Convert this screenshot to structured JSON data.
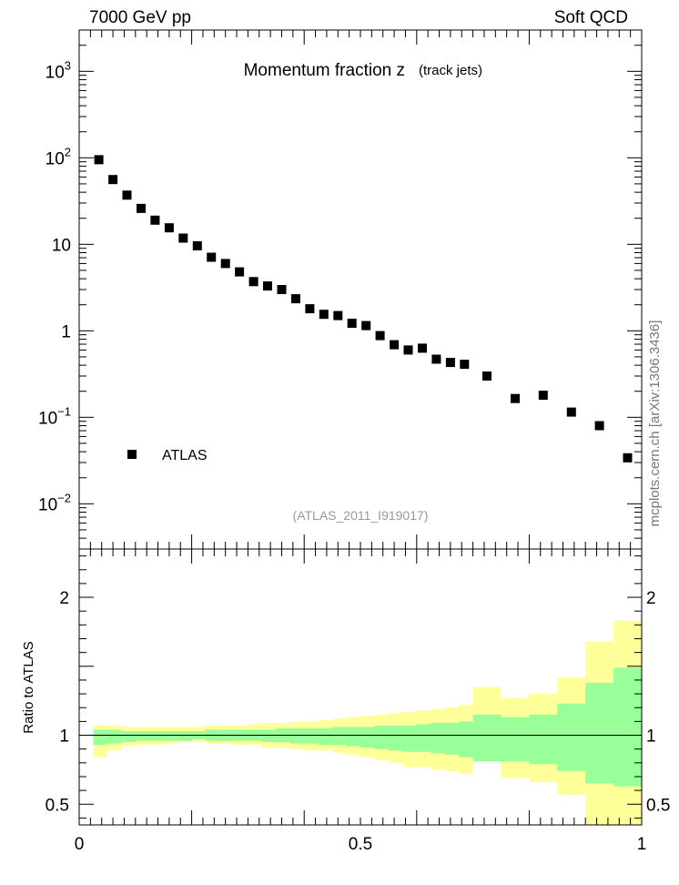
{
  "header": {
    "left": "7000 GeV pp",
    "right": "Soft QCD"
  },
  "side_label": "mcplots.cern.ch [arXiv:1306.3436]",
  "chart_data": [
    {
      "type": "scatter",
      "title": "Momentum fraction z",
      "title_sub": "(track jets)",
      "analysis_tag": "(ATLAS_2011_I919017)",
      "yscale": "log",
      "xlim": [
        0,
        1
      ],
      "ylim": [
        0.003,
        3000
      ],
      "y_ticks": [
        {
          "value": 0.01,
          "base": "10",
          "exp": "−2"
        },
        {
          "value": 0.1,
          "base": "10",
          "exp": "−1"
        },
        {
          "value": 1,
          "base": "1",
          "exp": ""
        },
        {
          "value": 10,
          "base": "10",
          "exp": ""
        },
        {
          "value": 100,
          "base": "10",
          "exp": "2"
        },
        {
          "value": 1000,
          "base": "10",
          "exp": "3"
        }
      ],
      "legend": {
        "entry": "ATLAS",
        "placement": "bottom-left"
      },
      "series": [
        {
          "name": "ATLAS",
          "x": [
            0.035,
            0.06,
            0.085,
            0.11,
            0.135,
            0.16,
            0.185,
            0.21,
            0.235,
            0.26,
            0.285,
            0.31,
            0.335,
            0.36,
            0.385,
            0.41,
            0.435,
            0.46,
            0.485,
            0.51,
            0.535,
            0.56,
            0.585,
            0.61,
            0.635,
            0.66,
            0.685,
            0.725,
            0.775,
            0.825,
            0.875,
            0.925,
            0.975
          ],
          "y": [
            95,
            56,
            37,
            26,
            19,
            15.5,
            11.8,
            9.6,
            7.1,
            6.0,
            4.8,
            3.7,
            3.3,
            3.0,
            2.35,
            1.8,
            1.55,
            1.5,
            1.22,
            1.15,
            0.88,
            0.69,
            0.6,
            0.63,
            0.47,
            0.43,
            0.41,
            0.3,
            0.165,
            0.18,
            0.115,
            0.08,
            0.034
          ]
        }
      ]
    },
    {
      "type": "area",
      "ylabel": "Ratio to ATLAS",
      "xlim": [
        0,
        1
      ],
      "ylim": [
        0.35,
        2.35
      ],
      "x_ticks": [
        "0",
        "0.5",
        "1"
      ],
      "y_ticks": [
        "0.5",
        "1",
        "2"
      ],
      "reference_line": 1,
      "bins": [
        0.025,
        0.05,
        0.075,
        0.1,
        0.125,
        0.15,
        0.175,
        0.2,
        0.225,
        0.25,
        0.275,
        0.3,
        0.325,
        0.35,
        0.375,
        0.4,
        0.425,
        0.45,
        0.475,
        0.5,
        0.525,
        0.55,
        0.575,
        0.6,
        0.625,
        0.65,
        0.675,
        0.7,
        0.75,
        0.8,
        0.85,
        0.9,
        0.95,
        1.0
      ],
      "bands": [
        {
          "color": "#ffff99",
          "low": [
            0.84,
            0.89,
            0.92,
            0.93,
            0.93,
            0.94,
            0.95,
            0.95,
            0.94,
            0.94,
            0.93,
            0.93,
            0.91,
            0.91,
            0.9,
            0.89,
            0.89,
            0.87,
            0.86,
            0.84,
            0.82,
            0.8,
            0.77,
            0.77,
            0.75,
            0.74,
            0.72,
            0.85,
            0.69,
            0.66,
            0.57,
            0.33,
            0.33
          ],
          "high": [
            1.07,
            1.07,
            1.06,
            1.06,
            1.06,
            1.06,
            1.06,
            1.06,
            1.07,
            1.07,
            1.07,
            1.08,
            1.09,
            1.09,
            1.1,
            1.1,
            1.11,
            1.12,
            1.13,
            1.14,
            1.15,
            1.16,
            1.17,
            1.18,
            1.19,
            1.2,
            1.22,
            1.35,
            1.27,
            1.3,
            1.42,
            1.68,
            1.83
          ]
        },
        {
          "color": "#99ff99",
          "low": [
            0.93,
            0.94,
            0.95,
            0.96,
            0.96,
            0.96,
            0.96,
            0.97,
            0.96,
            0.96,
            0.96,
            0.96,
            0.95,
            0.95,
            0.94,
            0.94,
            0.93,
            0.93,
            0.92,
            0.91,
            0.9,
            0.89,
            0.88,
            0.88,
            0.87,
            0.86,
            0.84,
            0.81,
            0.81,
            0.79,
            0.74,
            0.65,
            0.63
          ],
          "high": [
            1.04,
            1.04,
            1.03,
            1.03,
            1.03,
            1.03,
            1.03,
            1.03,
            1.04,
            1.04,
            1.04,
            1.04,
            1.04,
            1.05,
            1.05,
            1.05,
            1.05,
            1.06,
            1.06,
            1.06,
            1.07,
            1.07,
            1.07,
            1.08,
            1.09,
            1.09,
            1.1,
            1.15,
            1.13,
            1.15,
            1.23,
            1.38,
            1.49
          ]
        }
      ]
    }
  ]
}
